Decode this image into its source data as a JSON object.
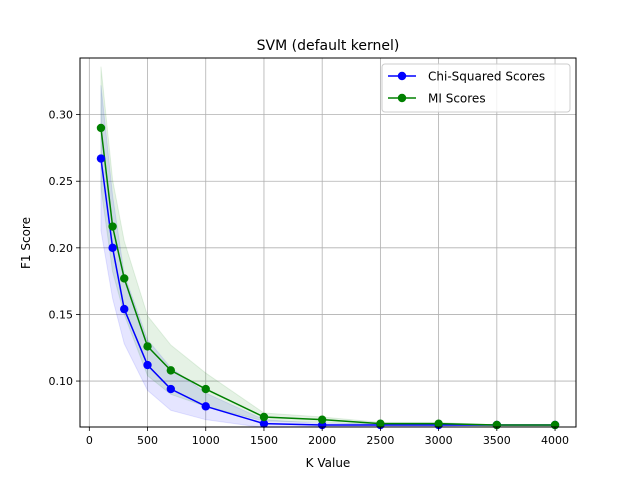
{
  "chart_data": {
    "type": "line",
    "title": "SVM (default kernel)",
    "xlabel": "K Value",
    "ylabel": "F1 Score",
    "xlim": [
      -80,
      4180
    ],
    "ylim": [
      0.0655,
      0.3425
    ],
    "xticks": [
      0,
      500,
      1000,
      1500,
      2000,
      2500,
      3000,
      3500,
      4000
    ],
    "yticks": [
      0.1,
      0.15,
      0.2,
      0.25,
      0.3
    ],
    "grid": true,
    "legend_position": "top-right",
    "x": [
      100,
      200,
      300,
      500,
      700,
      1000,
      1500,
      2000,
      2500,
      3000,
      3500,
      4000
    ],
    "series": [
      {
        "name": "Chi-Squared Scores",
        "color": "#0000ff",
        "values": [
          0.267,
          0.2,
          0.154,
          0.112,
          0.094,
          0.081,
          0.068,
          0.067,
          0.067,
          0.067,
          0.067,
          0.067
        ],
        "band_upper": [
          0.322,
          0.239,
          0.18,
          0.131,
          0.11,
          0.091,
          0.071,
          0.068,
          0.068,
          0.068,
          0.067,
          0.067
        ],
        "band_lower": [
          0.213,
          0.162,
          0.128,
          0.093,
          0.078,
          0.071,
          0.065,
          0.066,
          0.066,
          0.066,
          0.067,
          0.067
        ]
      },
      {
        "name": "MI Scores",
        "color": "#008000",
        "values": [
          0.29,
          0.216,
          0.177,
          0.126,
          0.108,
          0.094,
          0.073,
          0.071,
          0.068,
          0.068,
          0.067,
          0.067
        ],
        "band_upper": [
          0.336,
          0.251,
          0.205,
          0.149,
          0.127,
          0.106,
          0.076,
          0.073,
          0.069,
          0.069,
          0.067,
          0.067
        ],
        "band_lower": [
          0.245,
          0.182,
          0.15,
          0.104,
          0.09,
          0.081,
          0.07,
          0.069,
          0.067,
          0.067,
          0.066,
          0.066
        ]
      }
    ]
  }
}
